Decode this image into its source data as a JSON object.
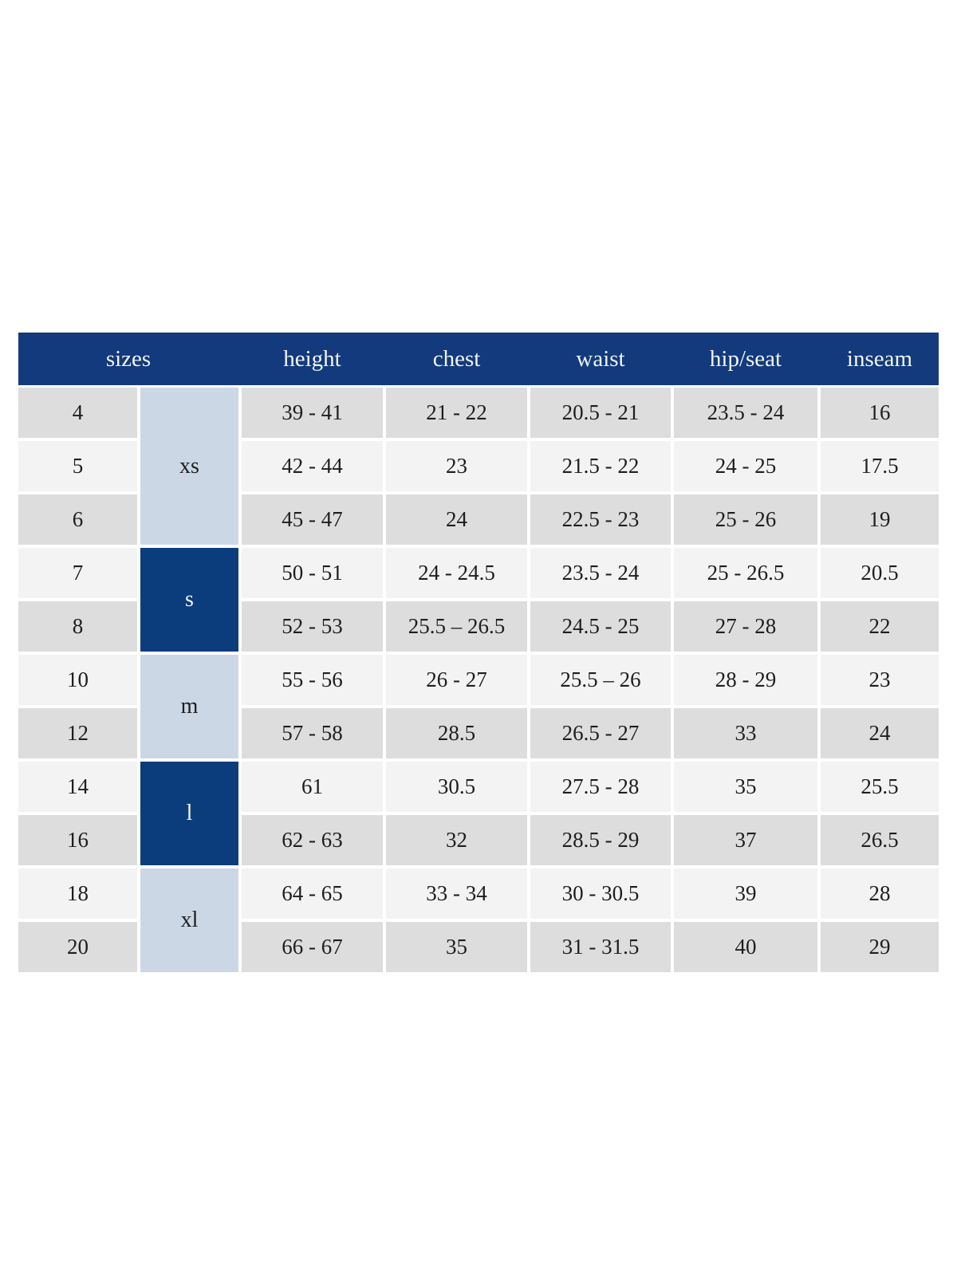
{
  "colors": {
    "header_bg": "#123a7c",
    "header_text": "#f2f4f8",
    "group_dark_bg": "#0b3d7c",
    "group_dark_text": "#f5f6fa",
    "group_light_bg": "#ccd7e6",
    "row_dark_bg": "#dddddd",
    "row_light_bg": "#f3f3f3",
    "cell_text": "#1e1e1e"
  },
  "header": {
    "sizes": "sizes",
    "height": "height",
    "chest": "chest",
    "waist": "waist",
    "hip_seat": "hip/seat",
    "inseam": "inseam"
  },
  "groups": [
    {
      "label": "xs",
      "span": 3,
      "variant": "light"
    },
    {
      "label": "s",
      "span": 2,
      "variant": "dark"
    },
    {
      "label": "m",
      "span": 2,
      "variant": "light"
    },
    {
      "label": "l",
      "span": 2,
      "variant": "dark"
    },
    {
      "label": "xl",
      "span": 2,
      "variant": "light"
    }
  ],
  "rows": [
    {
      "size": "4",
      "height": "39 - 41",
      "chest": "21 - 22",
      "waist": "20.5 - 21",
      "hip_seat": "23.5 - 24",
      "inseam": "16"
    },
    {
      "size": "5",
      "height": "42 - 44",
      "chest": "23",
      "waist": "21.5 - 22",
      "hip_seat": "24 - 25",
      "inseam": "17.5"
    },
    {
      "size": "6",
      "height": "45 - 47",
      "chest": "24",
      "waist": "22.5 - 23",
      "hip_seat": "25 - 26",
      "inseam": "19"
    },
    {
      "size": "7",
      "height": "50 - 51",
      "chest": "24 - 24.5",
      "waist": "23.5 - 24",
      "hip_seat": "25 - 26.5",
      "inseam": "20.5"
    },
    {
      "size": "8",
      "height": "52 - 53",
      "chest": "25.5 – 26.5",
      "waist": "24.5 - 25",
      "hip_seat": "27 - 28",
      "inseam": "22"
    },
    {
      "size": "10",
      "height": "55 - 56",
      "chest": "26 - 27",
      "waist": "25.5 – 26",
      "hip_seat": "28 - 29",
      "inseam": "23"
    },
    {
      "size": "12",
      "height": "57 - 58",
      "chest": "28.5",
      "waist": "26.5 - 27",
      "hip_seat": "33",
      "inseam": "24"
    },
    {
      "size": "14",
      "height": "61",
      "chest": "30.5",
      "waist": "27.5 - 28",
      "hip_seat": "35",
      "inseam": "25.5"
    },
    {
      "size": "16",
      "height": "62 - 63",
      "chest": "32",
      "waist": "28.5 - 29",
      "hip_seat": "37",
      "inseam": "26.5"
    },
    {
      "size": "18",
      "height": "64 - 65",
      "chest": "33 - 34",
      "waist": "30 - 30.5",
      "hip_seat": "39",
      "inseam": "28"
    },
    {
      "size": "20",
      "height": "66 - 67",
      "chest": "35",
      "waist": "31 - 31.5",
      "hip_seat": "40",
      "inseam": "29"
    }
  ]
}
